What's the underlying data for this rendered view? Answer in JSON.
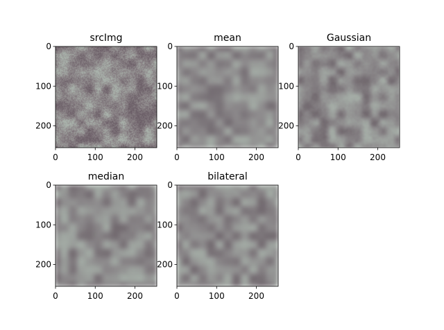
{
  "chart_data": [
    {
      "type": "heatmap",
      "title": "srcImg",
      "xlim": [
        0,
        255
      ],
      "ylim": [
        255,
        0
      ],
      "xticks": [
        "0",
        "100",
        "200"
      ],
      "yticks": [
        "0",
        "100",
        "200"
      ],
      "texture": {
        "base": "#8c8588",
        "light": "#a9b2ab",
        "dark": "#6c5f68",
        "noise": 0.55,
        "blur": 0
      }
    },
    {
      "type": "heatmap",
      "title": "mean",
      "xlim": [
        0,
        255
      ],
      "ylim": [
        255,
        0
      ],
      "xticks": [
        "0",
        "100",
        "200"
      ],
      "yticks": [
        "0",
        "100",
        "200"
      ],
      "texture": {
        "base": "#8d8a8c",
        "light": "#a5aea7",
        "dark": "#726a70",
        "noise": 0.2,
        "blur": 2
      }
    },
    {
      "type": "heatmap",
      "title": "Gaussian",
      "xlim": [
        0,
        255
      ],
      "ylim": [
        255,
        0
      ],
      "xticks": [
        "0",
        "100",
        "200"
      ],
      "yticks": [
        "0",
        "100",
        "200"
      ],
      "texture": {
        "base": "#8d8a8c",
        "light": "#a7b0a9",
        "dark": "#6f666c",
        "noise": 0.3,
        "blur": 1.2
      }
    },
    {
      "type": "heatmap",
      "title": "median",
      "xlim": [
        0,
        255
      ],
      "ylim": [
        255,
        0
      ],
      "xticks": [
        "0",
        "100",
        "200"
      ],
      "yticks": [
        "0",
        "100",
        "200"
      ],
      "texture": {
        "base": "#8c898b",
        "light": "#a5aea7",
        "dark": "#70676d",
        "noise": 0.18,
        "blur": 2.2
      }
    },
    {
      "type": "heatmap",
      "title": "bilateral",
      "xlim": [
        0,
        255
      ],
      "ylim": [
        255,
        0
      ],
      "xticks": [
        "0",
        "100",
        "200"
      ],
      "yticks": [
        "0",
        "100",
        "200"
      ],
      "texture": {
        "base": "#8c898b",
        "light": "#a5aea7",
        "dark": "#70676d",
        "noise": 0.2,
        "blur": 2
      }
    }
  ]
}
